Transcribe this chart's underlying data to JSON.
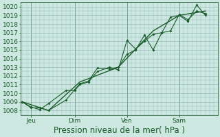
{
  "xlabel": "Pression niveau de la mer( hPa )",
  "bg_color": "#cce8e0",
  "grid_color": "#99bbbb",
  "line_color": "#1a5c2a",
  "vline_color": "#336644",
  "ylim": [
    1007.5,
    1020.5
  ],
  "xlim": [
    -0.1,
    11.2
  ],
  "yticks": [
    1008,
    1009,
    1010,
    1011,
    1012,
    1013,
    1014,
    1015,
    1016,
    1017,
    1018,
    1019,
    1020
  ],
  "xtick_labels": [
    "Jeu",
    "Dim",
    "Ven",
    "Sam"
  ],
  "xtick_positions": [
    0.5,
    3.0,
    6.0,
    9.0
  ],
  "vlines": [
    0.5,
    3.0,
    6.0,
    9.0
  ],
  "series1": [
    [
      0.0,
      1009.0
    ],
    [
      0.5,
      1008.3
    ],
    [
      1.0,
      1008.3
    ],
    [
      1.5,
      1008.0
    ],
    [
      2.5,
      1009.2
    ],
    [
      3.0,
      1010.4
    ],
    [
      3.3,
      1011.1
    ],
    [
      3.8,
      1011.4
    ],
    [
      4.3,
      1012.9
    ],
    [
      5.0,
      1012.8
    ],
    [
      5.5,
      1013.0
    ],
    [
      6.0,
      1014.5
    ],
    [
      6.5,
      1015.0
    ],
    [
      7.0,
      1016.7
    ],
    [
      7.5,
      1015.0
    ],
    [
      8.0,
      1017.0
    ],
    [
      8.5,
      1018.8
    ],
    [
      9.0,
      1019.0
    ],
    [
      9.5,
      1018.3
    ],
    [
      10.0,
      1020.2
    ],
    [
      10.5,
      1019.0
    ]
  ],
  "series2": [
    [
      0.0,
      1009.0
    ],
    [
      0.5,
      1008.4
    ],
    [
      1.0,
      1008.1
    ],
    [
      1.5,
      1008.8
    ],
    [
      2.5,
      1010.3
    ],
    [
      3.0,
      1010.3
    ],
    [
      3.3,
      1011.0
    ],
    [
      3.8,
      1011.3
    ],
    [
      4.3,
      1012.5
    ],
    [
      5.0,
      1013.0
    ],
    [
      5.5,
      1012.7
    ],
    [
      6.0,
      1016.1
    ],
    [
      6.5,
      1015.1
    ],
    [
      7.0,
      1016.0
    ],
    [
      7.5,
      1016.8
    ],
    [
      8.0,
      1017.0
    ],
    [
      8.5,
      1017.2
    ],
    [
      9.0,
      1019.1
    ],
    [
      9.5,
      1018.5
    ],
    [
      10.0,
      1019.5
    ],
    [
      10.5,
      1019.2
    ]
  ],
  "series3": [
    [
      0.0,
      1009.0
    ],
    [
      1.5,
      1008.0
    ],
    [
      3.3,
      1011.3
    ],
    [
      5.5,
      1013.0
    ],
    [
      7.5,
      1017.2
    ],
    [
      9.0,
      1019.0
    ],
    [
      10.5,
      1019.5
    ]
  ],
  "font_size_tick": 6.5,
  "font_size_xlabel": 8.5
}
